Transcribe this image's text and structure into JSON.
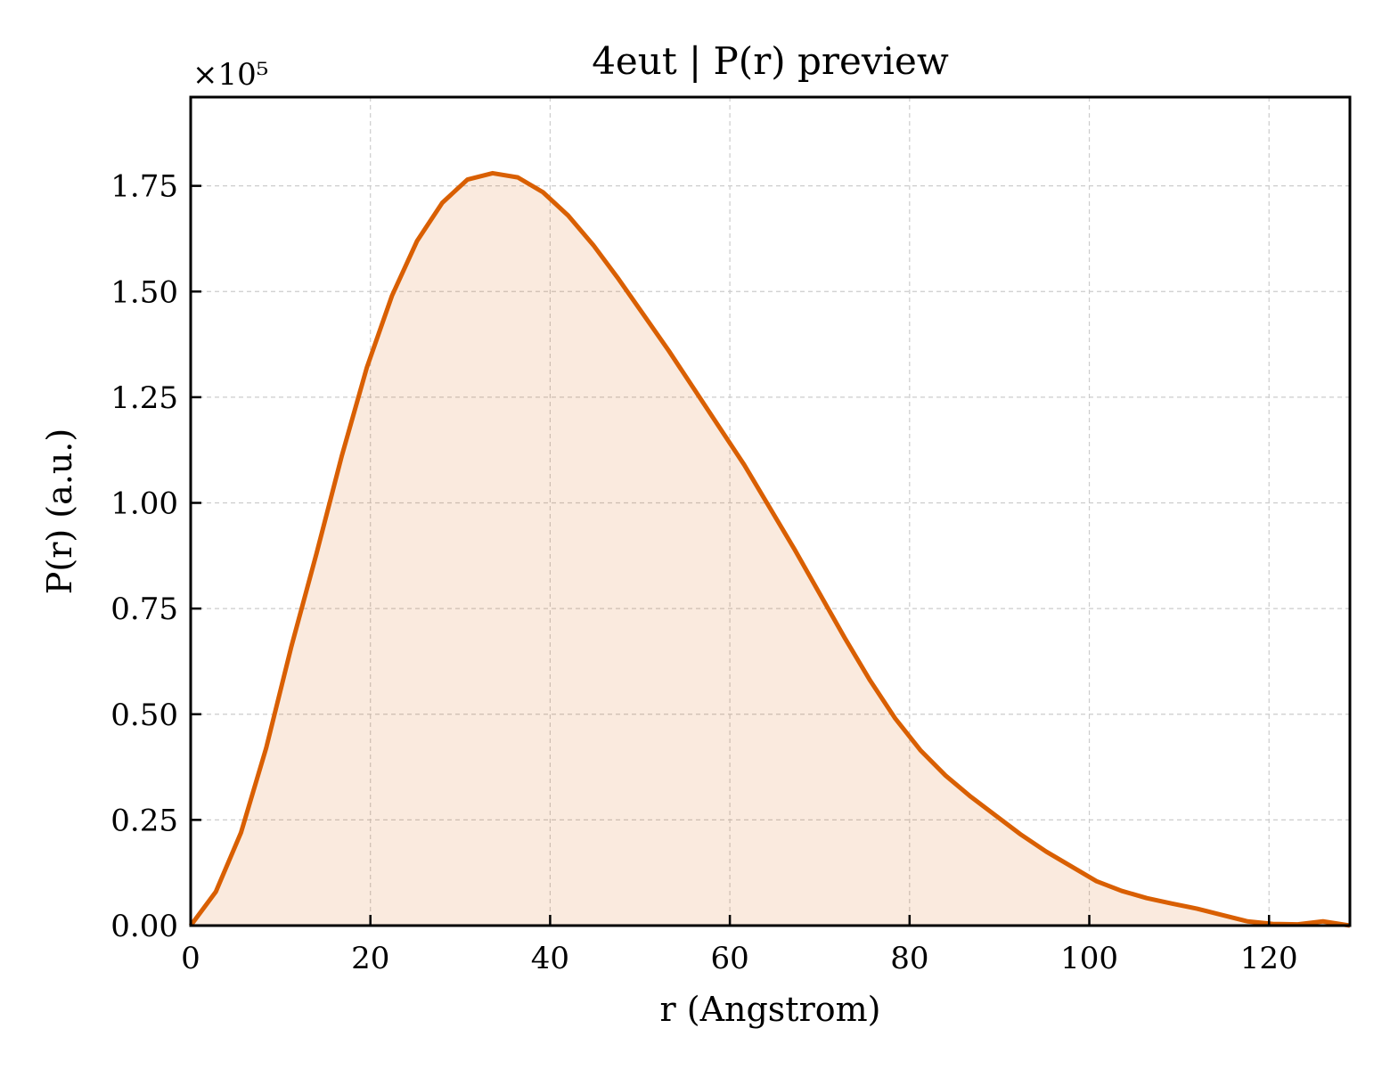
{
  "chart_data": {
    "type": "area",
    "title": "4eut | P(r) preview",
    "xlabel": "r (Angstrom)",
    "ylabel": "P(r) (a.u.)",
    "y_multiplier_label": "×10⁵",
    "xlim": [
      0,
      129
    ],
    "ylim": [
      0,
      1.96
    ],
    "xticks": [
      0,
      20,
      40,
      60,
      80,
      100,
      120
    ],
    "xtick_labels": [
      "0",
      "20",
      "40",
      "60",
      "80",
      "100",
      "120"
    ],
    "yticks": [
      0,
      0.25,
      0.5,
      0.75,
      1.0,
      1.25,
      1.5,
      1.75
    ],
    "ytick_labels": [
      "0.00",
      "0.25",
      "0.50",
      "0.75",
      "1.00",
      "1.25",
      "1.50",
      "1.75"
    ],
    "grid": true,
    "line_color": "#d95f02",
    "fill_color": "#d95f02",
    "series": [
      {
        "x": [
          0,
          2.8,
          5.6,
          8.4,
          11.2,
          14.0,
          16.8,
          19.6,
          22.4,
          25.2,
          28.0,
          30.8,
          33.6,
          36.4,
          39.2,
          42.0,
          44.8,
          47.6,
          50.4,
          53.2,
          56.0,
          58.8,
          61.6,
          64.4,
          67.2,
          70.0,
          72.8,
          75.6,
          78.4,
          81.2,
          84.0,
          86.8,
          89.6,
          92.4,
          95.2,
          98.0,
          100.8,
          103.6,
          106.4,
          109.2,
          112.0,
          114.8,
          117.6,
          120.4,
          123.2,
          126.0,
          129.0
        ],
        "y": [
          0.0,
          0.08,
          0.22,
          0.42,
          0.66,
          0.88,
          1.11,
          1.32,
          1.49,
          1.62,
          1.71,
          1.765,
          1.78,
          1.77,
          1.735,
          1.68,
          1.61,
          1.53,
          1.445,
          1.36,
          1.27,
          1.18,
          1.09,
          0.99,
          0.89,
          0.785,
          0.68,
          0.58,
          0.49,
          0.415,
          0.355,
          0.305,
          0.26,
          0.215,
          0.175,
          0.14,
          0.105,
          0.082,
          0.065,
          0.052,
          0.04,
          0.025,
          0.01,
          0.004,
          0.003,
          0.01,
          0.0
        ]
      }
    ]
  }
}
